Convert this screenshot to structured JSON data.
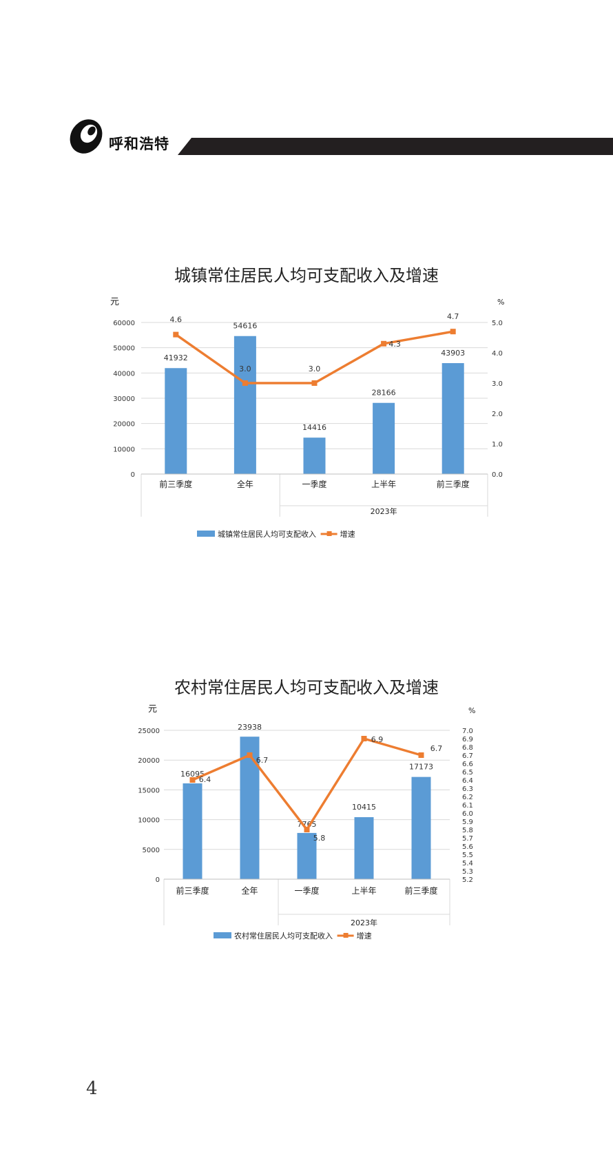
{
  "header": {
    "title": "呼和浩特"
  },
  "page_number": "4",
  "chart_data": [
    {
      "type": "bar",
      "title": "城镇常住居民人均可支配收入及增速",
      "left_unit": "元",
      "right_unit": "%",
      "categories": [
        "前三季度",
        "全年",
        "一季度",
        "上半年",
        "前三季度"
      ],
      "group_label": "2023年",
      "group_span": [
        2,
        4
      ],
      "series": [
        {
          "name": "城镇常住居民人均可支配收入",
          "kind": "bar",
          "axis": "left",
          "color": "#5B9BD5",
          "values": [
            41932,
            54616,
            14416,
            28166,
            43903
          ]
        },
        {
          "name": "增速",
          "kind": "line",
          "axis": "right",
          "color": "#ED7D31",
          "values": [
            4.6,
            3.0,
            3.0,
            4.3,
            4.7
          ]
        }
      ],
      "y_left": {
        "min": 0,
        "max": 60000,
        "ticks": [
          "0",
          "10000",
          "20000",
          "30000",
          "40000",
          "50000",
          "60000"
        ]
      },
      "y_right": {
        "min": 0,
        "max": 5.0,
        "ticks": [
          "0.0",
          "1.0",
          "2.0",
          "3.0",
          "4.0",
          "5.0"
        ]
      },
      "bar_labels": [
        "41932",
        "54616",
        "14416",
        "28166",
        "43903"
      ],
      "line_labels": [
        "4.6",
        "3.0",
        "3.0",
        "4.3",
        "4.7"
      ],
      "grid": true,
      "legend_position": "bottom"
    },
    {
      "type": "bar",
      "title": "农村常住居民人均可支配收入及增速",
      "left_unit": "元",
      "right_unit": "%",
      "categories": [
        "前三季度",
        "全年",
        "一季度",
        "上半年",
        "前三季度"
      ],
      "group_label": "2023年",
      "group_span": [
        2,
        4
      ],
      "series": [
        {
          "name": "农村常住居民人均可支配收入",
          "kind": "bar",
          "axis": "left",
          "color": "#5B9BD5",
          "values": [
            16095,
            23938,
            7765,
            10415,
            17173
          ]
        },
        {
          "name": "增速",
          "kind": "line",
          "axis": "right",
          "color": "#ED7D31",
          "values": [
            6.4,
            6.7,
            5.8,
            6.9,
            6.7
          ]
        }
      ],
      "y_left": {
        "min": 0,
        "max": 25000,
        "ticks": [
          "0",
          "5000",
          "10000",
          "15000",
          "20000",
          "25000"
        ]
      },
      "y_right": {
        "min": 5.2,
        "max": 7.0,
        "ticks": [
          "5.2",
          "5.3",
          "5.4",
          "5.5",
          "5.6",
          "5.7",
          "5.8",
          "5.9",
          "6.0",
          "6.1",
          "6.2",
          "6.3",
          "6.4",
          "6.5",
          "6.6",
          "6.7",
          "6.8",
          "6.9",
          "7.0"
        ]
      },
      "bar_labels": [
        "16095",
        "23938",
        "7765",
        "10415",
        "17173"
      ],
      "line_labels": [
        "6.4",
        "6.7",
        "5.8",
        "6.9",
        "6.7"
      ],
      "grid": true,
      "legend_position": "bottom"
    }
  ]
}
